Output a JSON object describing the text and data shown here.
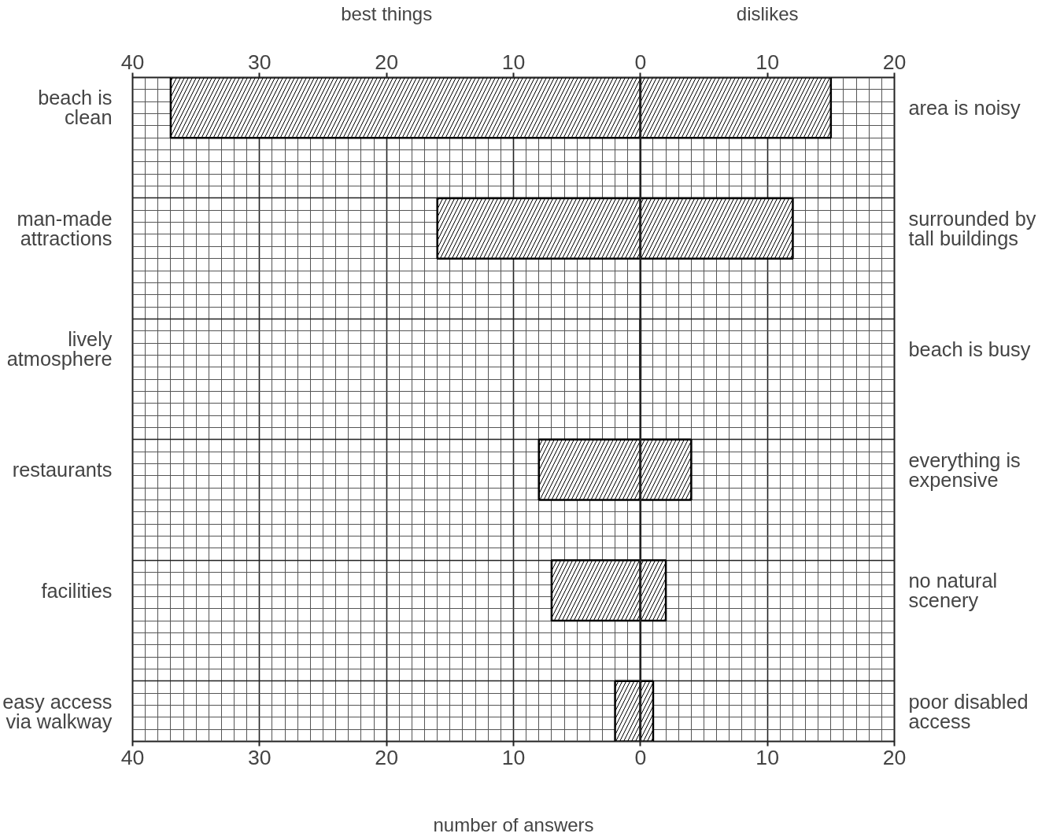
{
  "chart_data": {
    "type": "bar",
    "orientation": "horizontal",
    "stacked": true,
    "xlabel": "number of answers",
    "categories": [
      "beach is\nclean",
      "man-made\nattractions",
      "lively\natmosphere",
      "restaurants",
      "facilities",
      "easy access\nvia walkway"
    ],
    "y2_categories": [
      "area is noisy",
      "surrounded by\ntall buildings",
      "beach is busy",
      "everything is\nexpensive",
      "no natural\nscenery",
      "poor disabled\naccess"
    ],
    "series": [
      {
        "name": "best things",
        "color": "#000000",
        "values": [
          -37,
          -16,
          0,
          -8,
          -7,
          -2
        ]
      },
      {
        "name": "dislikes",
        "color": "#000000",
        "values": [
          15,
          12,
          0,
          4,
          2,
          1
        ]
      }
    ],
    "xlim": [
      -40,
      20
    ],
    "xticks": [
      {
        "value": -40,
        "label": "40"
      },
      {
        "value": -30,
        "label": "30"
      },
      {
        "value": -20,
        "label": "20"
      },
      {
        "value": -10,
        "label": "10"
      },
      0,
      10,
      20
    ],
    "x2lim": [
      -40,
      20
    ],
    "x2ticks": [
      {
        "value": -40,
        "label": "40"
      },
      {
        "value": -30,
        "label": "30"
      },
      {
        "value": -20,
        "label": "20"
      },
      {
        "value": -10,
        "label": "10"
      },
      0,
      10,
      20
    ],
    "ref_lines": [
      {
        "axis": "x",
        "value": 0
      }
    ],
    "grid": true
  }
}
